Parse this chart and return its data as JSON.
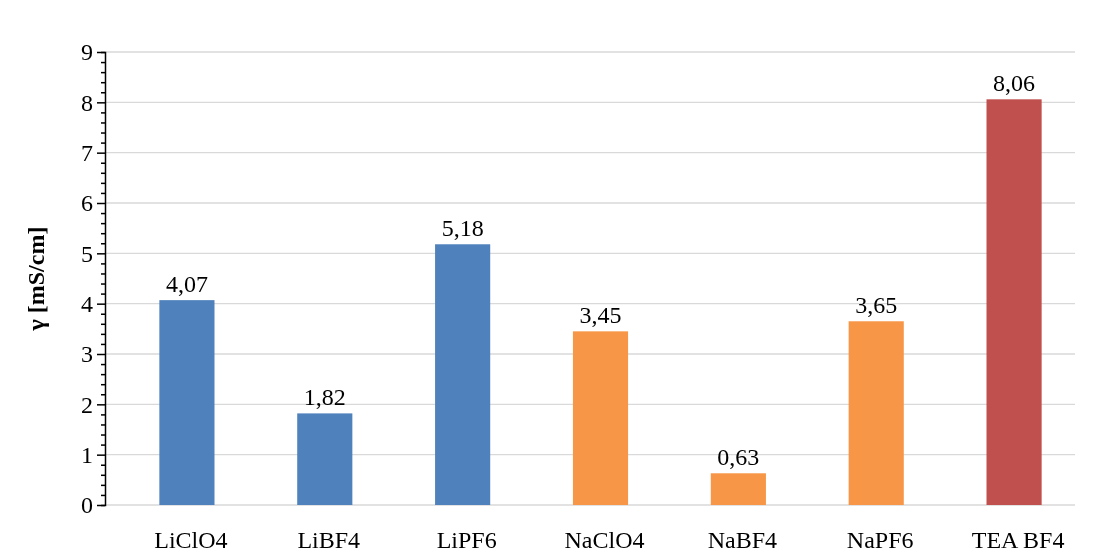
{
  "chart_data": {
    "type": "bar",
    "ylabel": "γ [mS/cm]",
    "categories": [
      "LiClO4",
      "LiBF4",
      "LiPF6",
      "NaClO4",
      "NaBF4",
      "NaPF6",
      "TEA BF4"
    ],
    "values": [
      4.07,
      1.82,
      5.18,
      3.45,
      0.63,
      3.65,
      8.06
    ],
    "colors": [
      "#4f81bd",
      "#4f81bd",
      "#4f81bd",
      "#f79646",
      "#f79646",
      "#f79646",
      "#c0504d"
    ],
    "value_labels": [
      "4,07",
      "1,82",
      "5,18",
      "3,45",
      "0,63",
      "3,65",
      "8,06"
    ],
    "ylim": [
      0,
      9
    ],
    "yticks": [
      0,
      {
        "value": 0.2,
        "label": null
      },
      {
        "value": 0.4,
        "label": null
      },
      {
        "value": 0.6,
        "label": null
      },
      {
        "value": 0.8,
        "label": null
      },
      1,
      {
        "value": 1.2,
        "label": null
      },
      {
        "value": 1.4,
        "label": null
      },
      {
        "value": 1.6,
        "label": null
      },
      {
        "value": 1.8,
        "label": null
      },
      2,
      {
        "value": 2.2,
        "label": null
      },
      {
        "value": 2.4,
        "label": null
      },
      {
        "value": 2.6,
        "label": null
      },
      {
        "value": 2.8,
        "label": null
      },
      3,
      {
        "value": 3.2,
        "label": null
      },
      {
        "value": 3.4,
        "label": null
      },
      {
        "value": 3.6,
        "label": null
      },
      {
        "value": 3.8,
        "label": null
      },
      4,
      {
        "value": 4.2,
        "label": null
      },
      {
        "value": 4.4,
        "label": null
      },
      {
        "value": 4.6,
        "label": null
      },
      {
        "value": 4.8,
        "label": null
      },
      5,
      {
        "value": 5.2,
        "label": null
      },
      {
        "value": 5.4,
        "label": null
      },
      {
        "value": 5.6,
        "label": null
      },
      {
        "value": 5.8,
        "label": null
      },
      6,
      {
        "value": 6.2,
        "label": null
      },
      {
        "value": 6.4,
        "label": null
      },
      {
        "value": 6.6,
        "label": null
      },
      {
        "value": 6.8,
        "label": null
      },
      7,
      {
        "value": 7.2,
        "label": null
      },
      {
        "value": 7.4,
        "label": null
      },
      {
        "value": 7.6,
        "label": null
      },
      {
        "value": 7.8,
        "label": null
      },
      8,
      {
        "value": 8.2,
        "label": null
      },
      {
        "value": 8.4,
        "label": null
      },
      {
        "value": 8.6,
        "label": null
      },
      {
        "value": 8.8,
        "label": null
      },
      9
    ],
    "grid": "y"
  }
}
